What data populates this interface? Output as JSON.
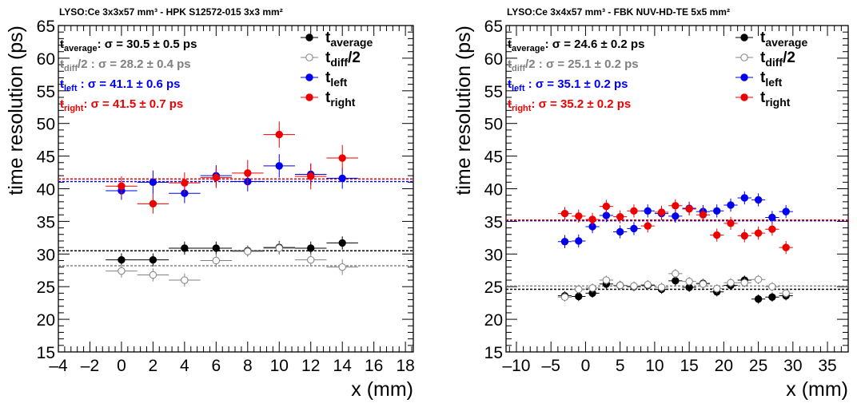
{
  "chart_data": [
    {
      "type": "scatter",
      "title": "LYSO:Ce 3x3x57 mm³ - HPK S12572-015 3x3 mm²",
      "xlabel": "x (mm)",
      "ylabel": "time resolution (ps)",
      "xlim": [
        -4,
        18.5
      ],
      "ylim": [
        15,
        65
      ],
      "xticks": [
        -4,
        -2,
        0,
        2,
        4,
        6,
        8,
        10,
        12,
        14,
        16,
        18
      ],
      "yticks": [
        15,
        20,
        25,
        30,
        35,
        40,
        45,
        50,
        55,
        60,
        65
      ],
      "grid": false,
      "legend_position": "top-right",
      "series": [
        {
          "name": "t_average",
          "legend_main": "t",
          "legend_sub": "average",
          "legend_suffix": "",
          "color": "#000000",
          "marker": "filled",
          "x": [
            0,
            2,
            4,
            6,
            8,
            10,
            12,
            14
          ],
          "y": [
            29.1,
            29.1,
            30.9,
            30.9,
            30.5,
            31.0,
            30.9,
            31.7
          ],
          "yerr": [
            1.0,
            1.0,
            1.0,
            1.0,
            0.8,
            1.0,
            1.0,
            1.0
          ],
          "xerr": 1,
          "fit_value": 30.5,
          "fit_label_main": "t",
          "fit_label_sub": "average",
          "fit_label_suffix": ": ",
          "fit_label_text": "σ = 30.5 ± 0.5 ps"
        },
        {
          "name": "t_diff/2",
          "legend_main": "t",
          "legend_sub": "diff",
          "legend_suffix": "/2",
          "color": "#808080",
          "marker": "open",
          "x": [
            0,
            2,
            4,
            6,
            8,
            10,
            12,
            14
          ],
          "y": [
            27.4,
            26.8,
            26.0,
            29.0,
            30.4,
            30.9,
            29.1,
            28.0
          ],
          "yerr": [
            1.0,
            1.0,
            1.0,
            1.0,
            0.8,
            1.0,
            1.0,
            1.2
          ],
          "xerr": 1,
          "fit_value": 28.2,
          "fit_label_main": "t",
          "fit_label_sub": "diff",
          "fit_label_suffix": "/2 : ",
          "fit_label_text": "σ = 28.2 ± 0.4 ps"
        },
        {
          "name": "t_left",
          "legend_main": "t",
          "legend_sub": "left",
          "legend_suffix": "",
          "color": "#0000ee",
          "marker": "filled",
          "x": [
            0,
            2,
            4,
            6,
            8,
            10,
            12,
            14
          ],
          "y": [
            39.7,
            41.0,
            39.3,
            42.0,
            41.1,
            43.5,
            42.2,
            41.6
          ],
          "yerr": [
            1.4,
            1.8,
            1.5,
            1.6,
            1.5,
            1.8,
            1.6,
            1.6
          ],
          "xerr": 1,
          "fit_value": 41.1,
          "fit_label_main": "t",
          "fit_label_sub": "left",
          "fit_label_suffix": "  : ",
          "fit_label_text": "σ = 41.1 ± 0.6 ps"
        },
        {
          "name": "t_right",
          "legend_main": "t",
          "legend_sub": "right",
          "legend_suffix": "",
          "color": "#ee0000",
          "marker": "filled",
          "x": [
            0,
            2,
            4,
            6,
            8,
            10,
            12,
            14
          ],
          "y": [
            40.4,
            37.7,
            40.9,
            41.7,
            42.4,
            48.3,
            41.9,
            44.7
          ],
          "yerr": [
            1.5,
            1.5,
            1.6,
            1.6,
            2.0,
            2.0,
            2.0,
            2.0
          ],
          "xerr": 1,
          "fit_value": 41.5,
          "fit_label_main": "t",
          "fit_label_sub": "right",
          "fit_label_suffix": ": ",
          "fit_label_text": "σ = 41.5 ± 0.7 ps"
        }
      ]
    },
    {
      "type": "scatter",
      "title": "LYSO:Ce 3x4x57 mm³ - FBK NUV-HD-TE 5x5 mm²",
      "xlabel": "x (mm)",
      "ylabel": "time resolution (ps)",
      "xlim": [
        -11.5,
        38
      ],
      "ylim": [
        15,
        65
      ],
      "xticks": [
        -10,
        -5,
        0,
        5,
        10,
        15,
        20,
        25,
        30,
        35
      ],
      "yticks": [
        15,
        20,
        25,
        30,
        35,
        40,
        45,
        50,
        55,
        60,
        65
      ],
      "grid": false,
      "legend_position": "top-right",
      "series": [
        {
          "name": "t_average",
          "legend_main": "t",
          "legend_sub": "average",
          "legend_suffix": "",
          "color": "#000000",
          "marker": "filled",
          "x": [
            -3,
            -1,
            1,
            3,
            5,
            7,
            9,
            11,
            13,
            15,
            17,
            19,
            21,
            23,
            25,
            27,
            29
          ],
          "y": [
            23.6,
            23.5,
            24.0,
            25.4,
            25.2,
            25.0,
            25.2,
            24.6,
            25.9,
            24.9,
            25.5,
            24.2,
            25.2,
            26.0,
            23.1,
            23.4,
            23.6
          ],
          "yerr": [
            0.7,
            0.7,
            0.7,
            0.7,
            0.7,
            0.7,
            0.7,
            0.7,
            0.7,
            0.7,
            0.7,
            0.7,
            0.7,
            0.7,
            0.7,
            0.7,
            0.7
          ],
          "xerr": 1,
          "fit_value": 24.6,
          "fit_label_main": "t",
          "fit_label_sub": "average",
          "fit_label_suffix": ": ",
          "fit_label_text": "σ = 24.6 ± 0.2 ps"
        },
        {
          "name": "t_diff/2",
          "legend_main": "t",
          "legend_sub": "diff",
          "legend_suffix": "/2",
          "color": "#808080",
          "marker": "open",
          "x": [
            -3,
            -1,
            1,
            3,
            5,
            7,
            9,
            11,
            13,
            15,
            17,
            19,
            21,
            23,
            25,
            27,
            29
          ],
          "y": [
            23.4,
            24.6,
            24.8,
            26.0,
            25.2,
            25.1,
            25.3,
            24.9,
            27.0,
            25.8,
            25.4,
            24.7,
            25.6,
            25.6,
            26.1,
            25.0,
            24.0
          ],
          "yerr": [
            0.7,
            0.7,
            0.7,
            0.7,
            0.7,
            0.7,
            0.7,
            0.7,
            0.7,
            0.7,
            0.7,
            0.7,
            0.7,
            0.7,
            0.7,
            0.7,
            0.7
          ],
          "xerr": 1,
          "fit_value": 25.1,
          "fit_label_main": "t",
          "fit_label_sub": "diff",
          "fit_label_suffix": "/2 : ",
          "fit_label_text": "σ = 25.1 ± 0.2 ps"
        },
        {
          "name": "t_left",
          "legend_main": "t",
          "legend_sub": "left",
          "legend_suffix": "",
          "color": "#0000ee",
          "marker": "filled",
          "x": [
            -3,
            -1,
            1,
            3,
            5,
            7,
            9,
            11,
            13,
            15,
            17,
            19,
            21,
            23,
            25,
            27,
            29
          ],
          "y": [
            31.9,
            32.0,
            34.2,
            35.9,
            33.4,
            33.9,
            36.6,
            36.2,
            35.8,
            37.0,
            36.5,
            36.6,
            37.5,
            38.6,
            38.3,
            35.6,
            36.5
          ],
          "yerr": [
            1.0,
            1.0,
            1.0,
            1.0,
            1.0,
            1.0,
            1.0,
            1.0,
            1.0,
            1.0,
            1.0,
            1.0,
            1.0,
            1.0,
            1.0,
            1.0,
            1.0
          ],
          "xerr": 1,
          "fit_value": 35.1,
          "fit_label_main": "t",
          "fit_label_sub": "left",
          "fit_label_suffix": "  : ",
          "fit_label_text": "σ = 35.1 ± 0.2 ps"
        },
        {
          "name": "t_right",
          "legend_main": "t",
          "legend_sub": "right",
          "legend_suffix": "",
          "color": "#ee0000",
          "marker": "filled",
          "x": [
            -3,
            -1,
            1,
            3,
            5,
            7,
            9,
            11,
            13,
            15,
            17,
            19,
            21,
            23,
            25,
            27,
            29
          ],
          "y": [
            36.2,
            35.8,
            35.3,
            37.3,
            35.7,
            36.6,
            34.3,
            36.4,
            37.4,
            36.9,
            36.0,
            32.9,
            34.7,
            32.8,
            33.2,
            33.8,
            31.0
          ],
          "yerr": [
            1.0,
            1.0,
            1.0,
            1.0,
            1.0,
            1.0,
            1.0,
            1.0,
            1.0,
            1.0,
            1.0,
            1.0,
            1.0,
            1.0,
            1.0,
            1.0,
            1.0
          ],
          "xerr": 1,
          "fit_value": 35.2,
          "fit_label_main": "t",
          "fit_label_sub": "right",
          "fit_label_suffix": ": ",
          "fit_label_text": "σ = 35.2 ± 0.2 ps"
        }
      ]
    }
  ]
}
